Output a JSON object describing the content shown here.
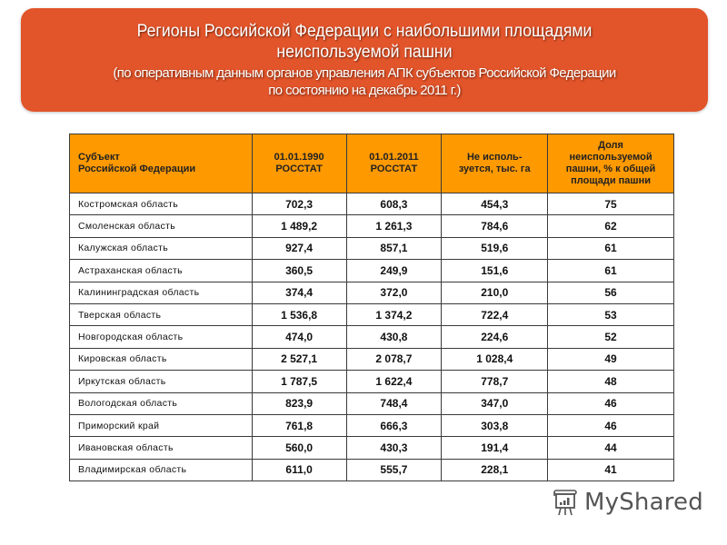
{
  "banner": {
    "title_line1": "Регионы Российской Федерации с наибольшими площадями",
    "title_line2": "неиспользуемой пашни",
    "subtitle_line1": "(по оперативным данным органов управления АПК субъектов Российской Федерации",
    "subtitle_line2": "по состоянию на декабрь 2011 г.)",
    "color": "#E2542A"
  },
  "table": {
    "header_color": "#FF9900",
    "headers": [
      {
        "line1": "Субъект",
        "line2": "Российской Федерации"
      },
      {
        "line1": "01.01.1990",
        "line2": "РОССТАТ"
      },
      {
        "line1": "01.01.2011",
        "line2": "РОССТАТ"
      },
      {
        "line1": "Не исполь-",
        "line2": "зуется, тыс. га"
      },
      {
        "line1": "Доля",
        "line2": "неиспользуемой",
        "line3": "пашни, % к общей",
        "line4": "площади пашни"
      }
    ],
    "rows": [
      [
        "Костромская область",
        "702,3",
        "608,3",
        "454,3",
        "75"
      ],
      [
        "Смоленская область",
        "1 489,2",
        "1 261,3",
        "784,6",
        "62"
      ],
      [
        "Калужская область",
        "927,4",
        "857,1",
        "519,6",
        "61"
      ],
      [
        "Астраханская область",
        "360,5",
        "249,9",
        "151,6",
        "61"
      ],
      [
        "Калининградская область",
        "374,4",
        "372,0",
        "210,0",
        "56"
      ],
      [
        "Тверская область",
        "1 536,8",
        "1 374,2",
        "722,4",
        "53"
      ],
      [
        "Новгородская область",
        "474,0",
        "430,8",
        "224,6",
        "52"
      ],
      [
        "Кировская область",
        "2 527,1",
        "2 078,7",
        "1 028,4",
        "49"
      ],
      [
        "Иркутская область",
        "1 787,5",
        "1 622,4",
        "778,7",
        "48"
      ],
      [
        "Вологодская область",
        "823,9",
        "748,4",
        "347,0",
        "46"
      ],
      [
        "Приморский край",
        "761,8",
        "666,3",
        "303,8",
        "46"
      ],
      [
        "Ивановская область",
        "560,0",
        "430,3",
        "191,4",
        "44"
      ],
      [
        "Владимирская область",
        "611,0",
        "555,7",
        "228,1",
        "41"
      ]
    ]
  },
  "watermark": {
    "text": "MyShared",
    "icon": "presentation-board-icon"
  }
}
